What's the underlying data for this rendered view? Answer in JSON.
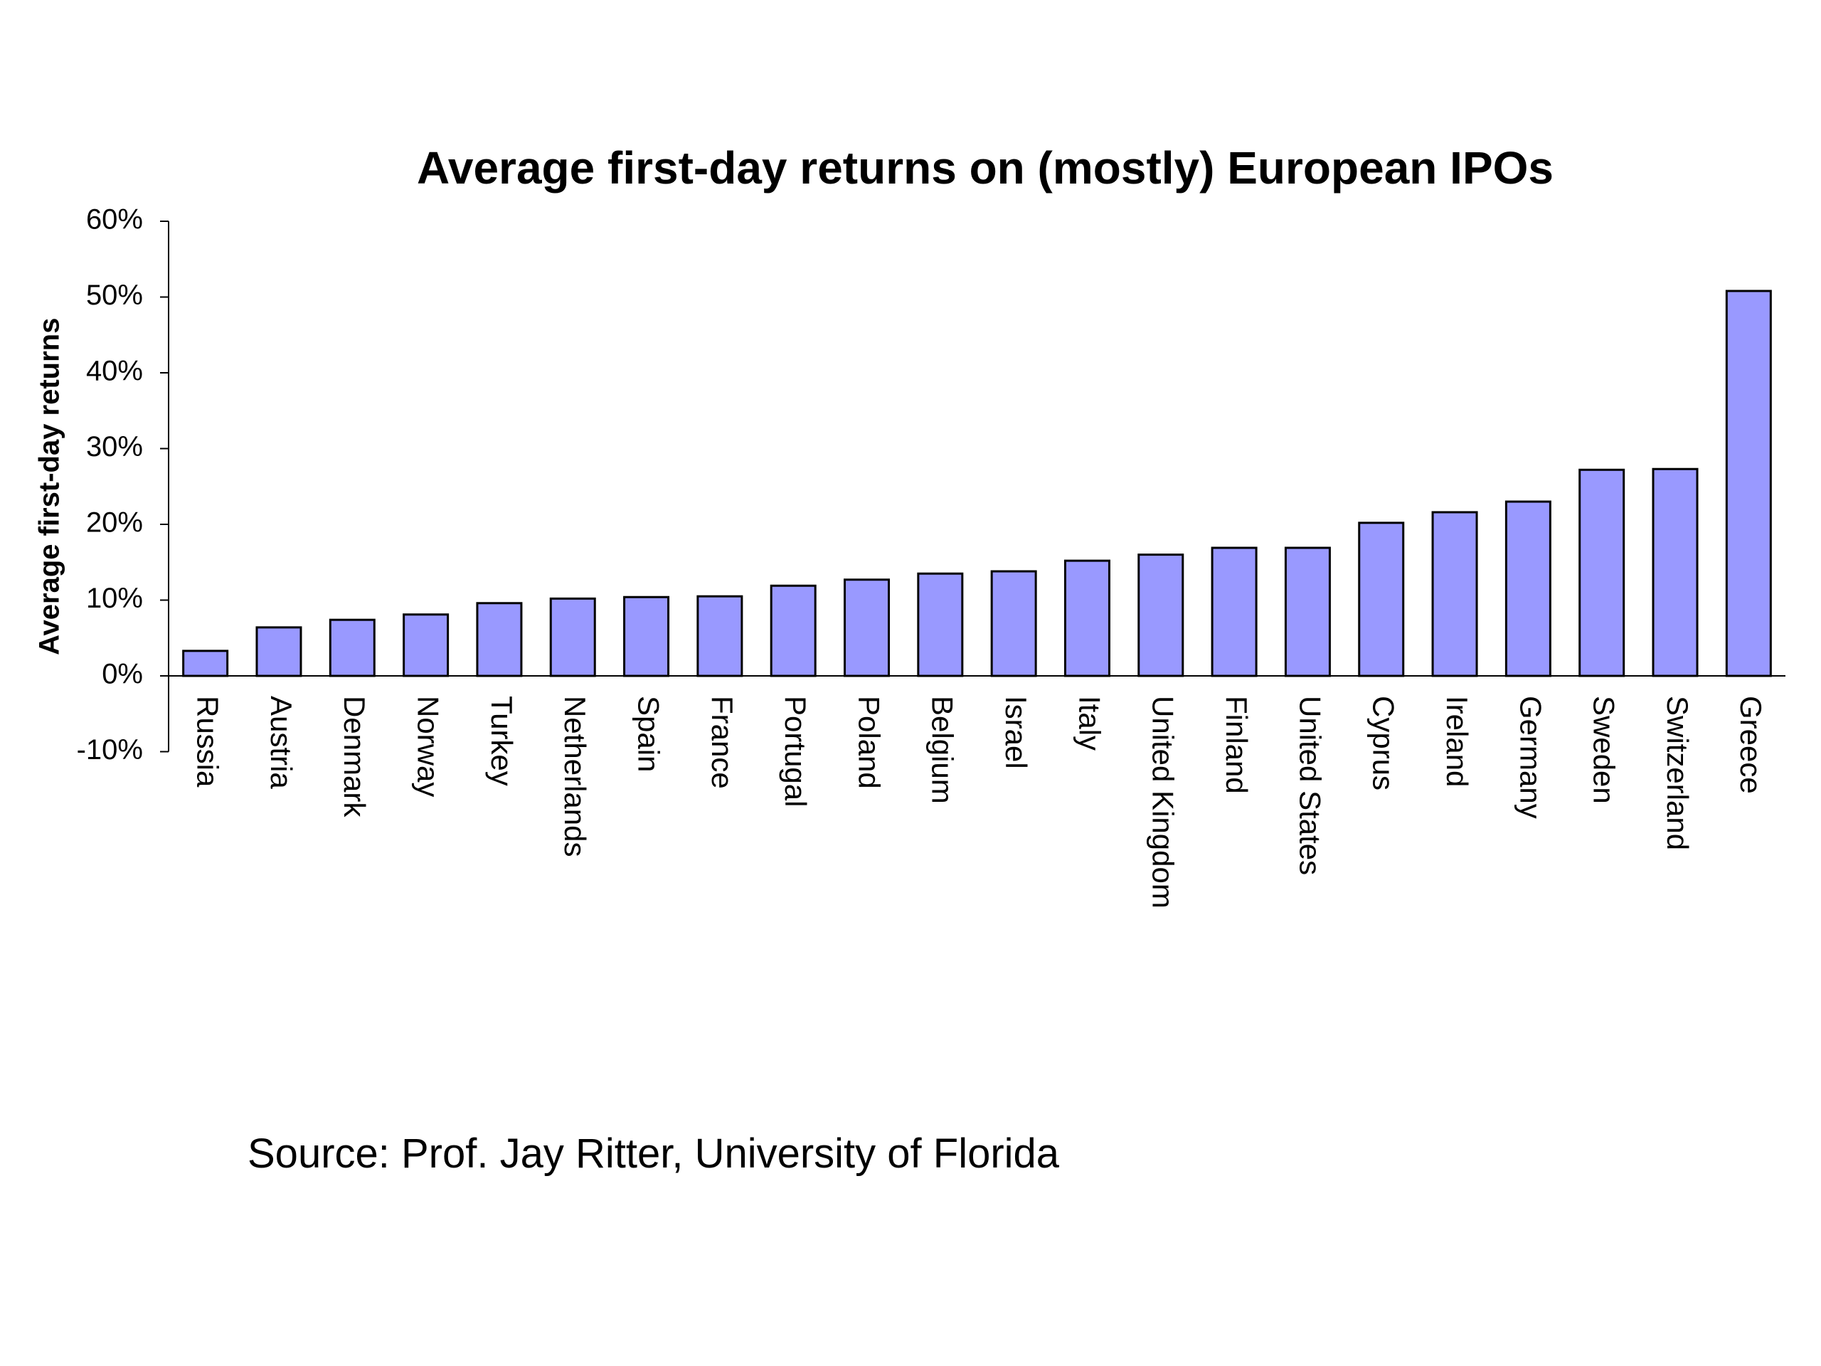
{
  "chart_data": {
    "type": "bar",
    "title": "Average first-day returns on (mostly) European IPOs",
    "ylabel": "Average first-day returns",
    "xlabel": "",
    "ylim": [
      -10,
      60
    ],
    "ytick_values": [
      -10,
      0,
      10,
      20,
      30,
      40,
      50,
      60
    ],
    "ytick_labels": [
      "-10%",
      "0%",
      "10%",
      "20%",
      "30%",
      "40%",
      "50%",
      "60%"
    ],
    "grid": false,
    "bar_color": "#9999ff",
    "categories": [
      "Russia",
      "Austria",
      "Denmark",
      "Norway",
      "Turkey",
      "Netherlands",
      "Spain",
      "France",
      "Portugal",
      "Poland",
      "Belgium",
      "Israel",
      "Italy",
      "United Kingdom",
      "Finland",
      "United States",
      "Cyprus",
      "Ireland",
      "Germany",
      "Sweden",
      "Switzerland",
      "Greece"
    ],
    "values": [
      3.3,
      6.4,
      7.4,
      8.1,
      9.6,
      10.2,
      10.4,
      10.5,
      11.9,
      12.7,
      13.5,
      13.8,
      15.2,
      16.0,
      16.9,
      16.9,
      20.2,
      21.6,
      23.0,
      27.2,
      27.3,
      50.8
    ]
  },
  "footer": {
    "source": "Source: Prof. Jay Ritter, University of Florida"
  }
}
